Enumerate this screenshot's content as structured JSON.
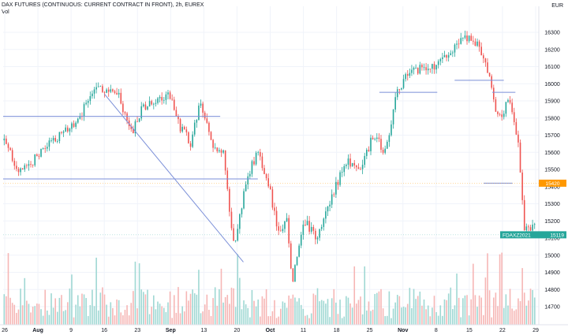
{
  "header": {
    "title": "DAX FUTURES (CONTINUOUS: CURRENT CONTRACT IN FRONT), 2h, EUREX",
    "volume_label": "Vol",
    "currency": "EUR"
  },
  "colors": {
    "up": "#26a69a",
    "down": "#ef5350",
    "vol_up": "#9fd8d3",
    "vol_down": "#f6b6b5",
    "grid": "#f0f3fa",
    "drawing": "#7b8fd8",
    "price_tag": "#ff9800",
    "ticker_tag": "#26a69a",
    "axis_text": "#131722"
  },
  "chart_data": {
    "type": "candlestick",
    "y_axis": {
      "min": 14650,
      "max": 16450,
      "ticks": [
        16300,
        16200,
        16100,
        16000,
        15900,
        15800,
        15700,
        15600,
        15500,
        15400,
        15300,
        15200,
        15100,
        15000,
        14900,
        14800,
        14700
      ]
    },
    "x_axis": {
      "ticks": [
        "26",
        "Aug",
        "9",
        "16",
        "23",
        "Sep",
        "13",
        "20",
        "Oct",
        "11",
        "18",
        "25",
        "Nov",
        "8",
        "15",
        "22",
        "29"
      ]
    },
    "anchors": [
      {
        "t": 0,
        "p": 15670
      },
      {
        "t": 0.6,
        "p": 15480
      },
      {
        "t": 1.8,
        "p": 15680
      },
      {
        "t": 2.6,
        "p": 15780
      },
      {
        "t": 3.2,
        "p": 16010
      },
      {
        "t": 3.6,
        "p": 15950
      },
      {
        "t": 4.0,
        "p": 15930
      },
      {
        "t": 4.4,
        "p": 15700
      },
      {
        "t": 4.8,
        "p": 15850
      },
      {
        "t": 5.3,
        "p": 15900
      },
      {
        "t": 5.8,
        "p": 15940
      },
      {
        "t": 6.1,
        "p": 15750
      },
      {
        "t": 6.5,
        "p": 15650
      },
      {
        "t": 6.8,
        "p": 15900
      },
      {
        "t": 7.2,
        "p": 15650
      },
      {
        "t": 7.6,
        "p": 15600
      },
      {
        "t": 7.8,
        "p": 15300
      },
      {
        "t": 8.0,
        "p": 15030
      },
      {
        "t": 8.4,
        "p": 15450
      },
      {
        "t": 8.8,
        "p": 15600
      },
      {
        "t": 9.2,
        "p": 15400
      },
      {
        "t": 9.5,
        "p": 15120
      },
      {
        "t": 9.8,
        "p": 15200
      },
      {
        "t": 10.0,
        "p": 14850
      },
      {
        "t": 10.4,
        "p": 15200
      },
      {
        "t": 10.8,
        "p": 15100
      },
      {
        "t": 11.3,
        "p": 15300
      },
      {
        "t": 11.8,
        "p": 15550
      },
      {
        "t": 12.3,
        "p": 15500
      },
      {
        "t": 12.8,
        "p": 15700
      },
      {
        "t": 13.2,
        "p": 15600
      },
      {
        "t": 13.6,
        "p": 15950
      },
      {
        "t": 14.1,
        "p": 16080
      },
      {
        "t": 14.8,
        "p": 16090
      },
      {
        "t": 15.4,
        "p": 16160
      },
      {
        "t": 15.9,
        "p": 16270
      },
      {
        "t": 16.4,
        "p": 16230
      },
      {
        "t": 16.7,
        "p": 16100
      },
      {
        "t": 17.1,
        "p": 15800
      },
      {
        "t": 17.5,
        "p": 15900
      },
      {
        "t": 17.8,
        "p": 15650
      },
      {
        "t": 18.0,
        "p": 15170
      }
    ],
    "x_range": [
      0,
      18.4
    ],
    "candle_count": 260,
    "current_price": "15420",
    "ticker_label": "FDAXZ2021",
    "ticker_price": "15119",
    "hlines": [
      {
        "x0": 0,
        "x1": 7.5,
        "p": 15810
      },
      {
        "x0": 0,
        "x1": 8.8,
        "p": 15445
      },
      {
        "x0": 13.0,
        "x1": 15.0,
        "p": 15950
      },
      {
        "x0": 15.6,
        "x1": 17.3,
        "p": 16020
      },
      {
        "x0": 16.9,
        "x1": 17.7,
        "p": 15950
      },
      {
        "x0": 16.6,
        "x1": 17.6,
        "p": 15420
      }
    ],
    "trendlines": [
      {
        "x0": 3.5,
        "p0": 15940,
        "x1": 8.3,
        "p1": 14960
      }
    ],
    "price_lines": [
      {
        "p": 15420,
        "color": "price_tag"
      },
      {
        "p": 15119,
        "color": "ticker_tag"
      }
    ]
  }
}
